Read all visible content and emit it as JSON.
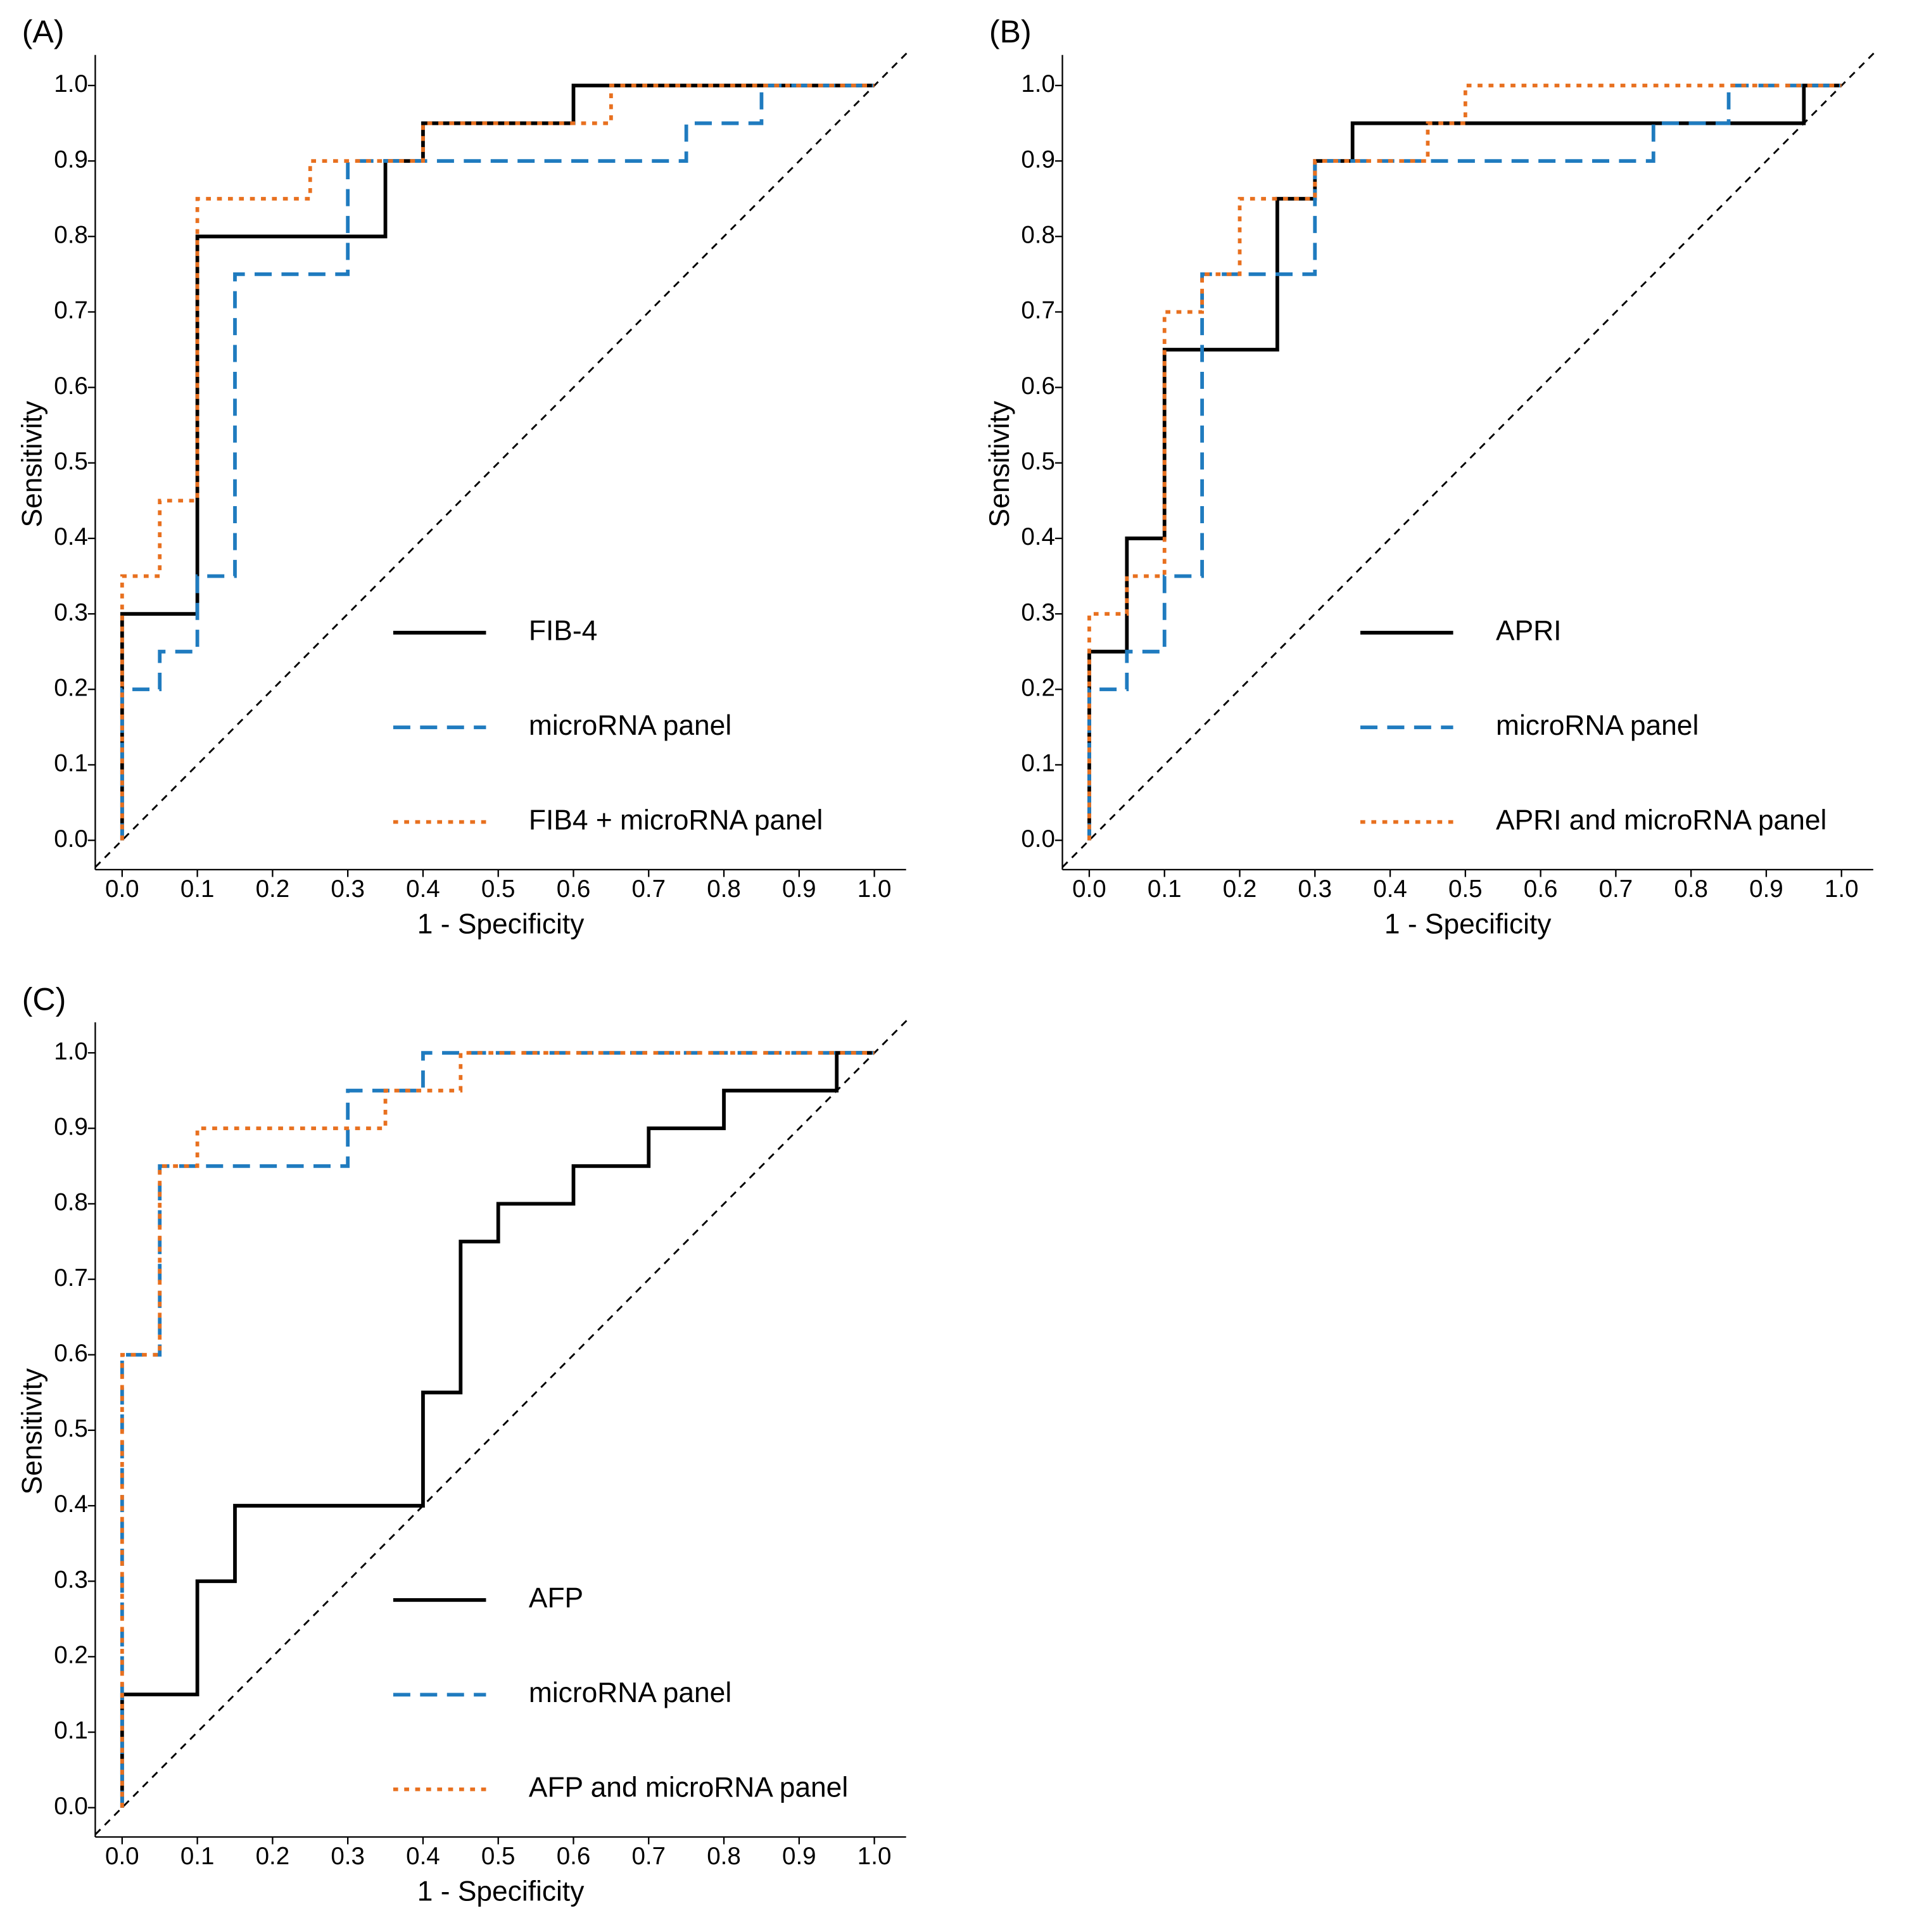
{
  "chart_data": [
    {
      "type": "line",
      "title": "(A)",
      "x_label": "1 - Specificity",
      "y_label": "Sensitivity",
      "xlim": [
        0,
        1
      ],
      "ylim": [
        0,
        1
      ],
      "xticks": [
        {
          "value": 0,
          "label": "0.0"
        },
        0.1,
        0.2,
        0.3,
        0.4,
        0.5,
        0.6,
        0.7,
        0.8,
        0.9,
        {
          "value": 1,
          "label": "1.0"
        }
      ],
      "yticks": [
        {
          "value": 0,
          "label": "0.0"
        },
        0.1,
        0.2,
        0.3,
        0.4,
        0.5,
        0.6,
        0.7,
        0.8,
        0.9,
        {
          "value": 1,
          "label": "1.0"
        }
      ],
      "legend": "lower right",
      "series": [
        {
          "name": "FIB-4",
          "color": "#000000",
          "style": "solid",
          "x": [
            0,
            0,
            0.1,
            0.1,
            0.35,
            0.35,
            0.4,
            0.4,
            0.6,
            0.6,
            1.0
          ],
          "values": [
            0,
            0.3,
            0.3,
            0.8,
            0.8,
            0.9,
            0.9,
            0.95,
            0.95,
            1.0,
            1.0
          ]
        },
        {
          "name": "microRNA panel",
          "color": "#1f7bbf",
          "style": "dashed",
          "x": [
            0,
            0,
            0.05,
            0.05,
            0.1,
            0.1,
            0.15,
            0.15,
            0.3,
            0.3,
            0.75,
            0.75,
            0.85,
            0.85,
            1.0
          ],
          "values": [
            0,
            0.2,
            0.2,
            0.25,
            0.25,
            0.35,
            0.35,
            0.75,
            0.75,
            0.9,
            0.9,
            0.95,
            0.95,
            1.0,
            1.0
          ]
        },
        {
          "name": "FIB4 + microRNA panel",
          "color": "#e8701f",
          "style": "dotted",
          "x": [
            0,
            0,
            0.05,
            0.05,
            0.1,
            0.1,
            0.25,
            0.25,
            0.4,
            0.4,
            0.65,
            0.65,
            1.0
          ],
          "values": [
            0,
            0.35,
            0.35,
            0.45,
            0.45,
            0.85,
            0.85,
            0.9,
            0.9,
            0.95,
            0.95,
            1.0,
            1.0
          ]
        }
      ]
    },
    {
      "type": "line",
      "title": "(B)",
      "x_label": "1 - Specificity",
      "y_label": "Sensitivity",
      "xlim": [
        0,
        1
      ],
      "ylim": [
        0,
        1
      ],
      "xticks": [
        {
          "value": 0,
          "label": "0.0"
        },
        0.1,
        0.2,
        0.3,
        0.4,
        0.5,
        0.6,
        0.7,
        0.8,
        0.9,
        {
          "value": 1,
          "label": "1.0"
        }
      ],
      "yticks": [
        {
          "value": 0,
          "label": "0.0"
        },
        0.1,
        0.2,
        0.3,
        0.4,
        0.5,
        0.6,
        0.7,
        0.8,
        0.9,
        {
          "value": 1,
          "label": "1.0"
        }
      ],
      "legend": "lower right",
      "series": [
        {
          "name": "APRI",
          "color": "#000000",
          "style": "solid",
          "x": [
            0,
            0,
            0.05,
            0.05,
            0.1,
            0.1,
            0.25,
            0.25,
            0.3,
            0.3,
            0.35,
            0.35,
            0.95,
            0.95,
            1.0
          ],
          "values": [
            0,
            0.25,
            0.25,
            0.4,
            0.4,
            0.65,
            0.65,
            0.85,
            0.85,
            0.9,
            0.9,
            0.95,
            0.95,
            1.0,
            1.0
          ]
        },
        {
          "name": "microRNA panel",
          "color": "#1f7bbf",
          "style": "dashed",
          "x": [
            0,
            0,
            0.05,
            0.05,
            0.1,
            0.1,
            0.15,
            0.15,
            0.3,
            0.3,
            0.75,
            0.75,
            0.85,
            0.85,
            1.0
          ],
          "values": [
            0,
            0.2,
            0.2,
            0.25,
            0.25,
            0.35,
            0.35,
            0.75,
            0.75,
            0.9,
            0.9,
            0.95,
            0.95,
            1.0,
            1.0
          ]
        },
        {
          "name": "APRI and microRNA panel",
          "color": "#e8701f",
          "style": "dotted",
          "x": [
            0,
            0,
            0.05,
            0.05,
            0.1,
            0.1,
            0.15,
            0.15,
            0.2,
            0.2,
            0.3,
            0.3,
            0.45,
            0.45,
            0.5,
            0.5,
            1.0
          ],
          "values": [
            0,
            0.3,
            0.3,
            0.35,
            0.35,
            0.7,
            0.7,
            0.75,
            0.75,
            0.85,
            0.85,
            0.9,
            0.9,
            0.95,
            0.95,
            1.0,
            1.0
          ]
        }
      ]
    },
    {
      "type": "line",
      "title": "(C)",
      "x_label": "1 - Specificity",
      "y_label": "Sensitivity",
      "xlim": [
        0,
        1
      ],
      "ylim": [
        0,
        1
      ],
      "xticks": [
        {
          "value": 0,
          "label": "0.0"
        },
        0.1,
        0.2,
        0.3,
        0.4,
        0.5,
        0.6,
        0.7,
        0.8,
        0.9,
        {
          "value": 1,
          "label": "1.0"
        }
      ],
      "yticks": [
        {
          "value": 0,
          "label": "0.0"
        },
        0.1,
        0.2,
        0.3,
        0.4,
        0.5,
        0.6,
        0.7,
        0.8,
        0.9,
        {
          "value": 1,
          "label": "1.0"
        }
      ],
      "legend": "lower right",
      "series": [
        {
          "name": "AFP",
          "color": "#000000",
          "style": "solid",
          "x": [
            0,
            0,
            0.1,
            0.1,
            0.15,
            0.15,
            0.4,
            0.4,
            0.45,
            0.45,
            0.5,
            0.5,
            0.6,
            0.6,
            0.7,
            0.7,
            0.8,
            0.8,
            0.95,
            0.95,
            1.0
          ],
          "values": [
            0,
            0.15,
            0.15,
            0.3,
            0.3,
            0.4,
            0.4,
            0.55,
            0.55,
            0.75,
            0.75,
            0.8,
            0.8,
            0.85,
            0.85,
            0.9,
            0.9,
            0.95,
            0.95,
            1.0,
            1.0
          ]
        },
        {
          "name": "microRNA panel",
          "color": "#1f7bbf",
          "style": "dashed",
          "x": [
            0,
            0,
            0.05,
            0.05,
            0.3,
            0.3,
            0.4,
            0.4,
            1.0
          ],
          "values": [
            0,
            0.6,
            0.6,
            0.85,
            0.85,
            0.95,
            0.95,
            1.0,
            1.0
          ]
        },
        {
          "name": "AFP and microRNA panel",
          "color": "#e8701f",
          "style": "dotted",
          "x": [
            0,
            0,
            0.05,
            0.05,
            0.1,
            0.1,
            0.35,
            0.35,
            0.45,
            0.45,
            1.0
          ],
          "values": [
            0,
            0.6,
            0.6,
            0.85,
            0.85,
            0.9,
            0.9,
            0.95,
            0.95,
            1.0,
            1.0
          ]
        }
      ]
    }
  ]
}
